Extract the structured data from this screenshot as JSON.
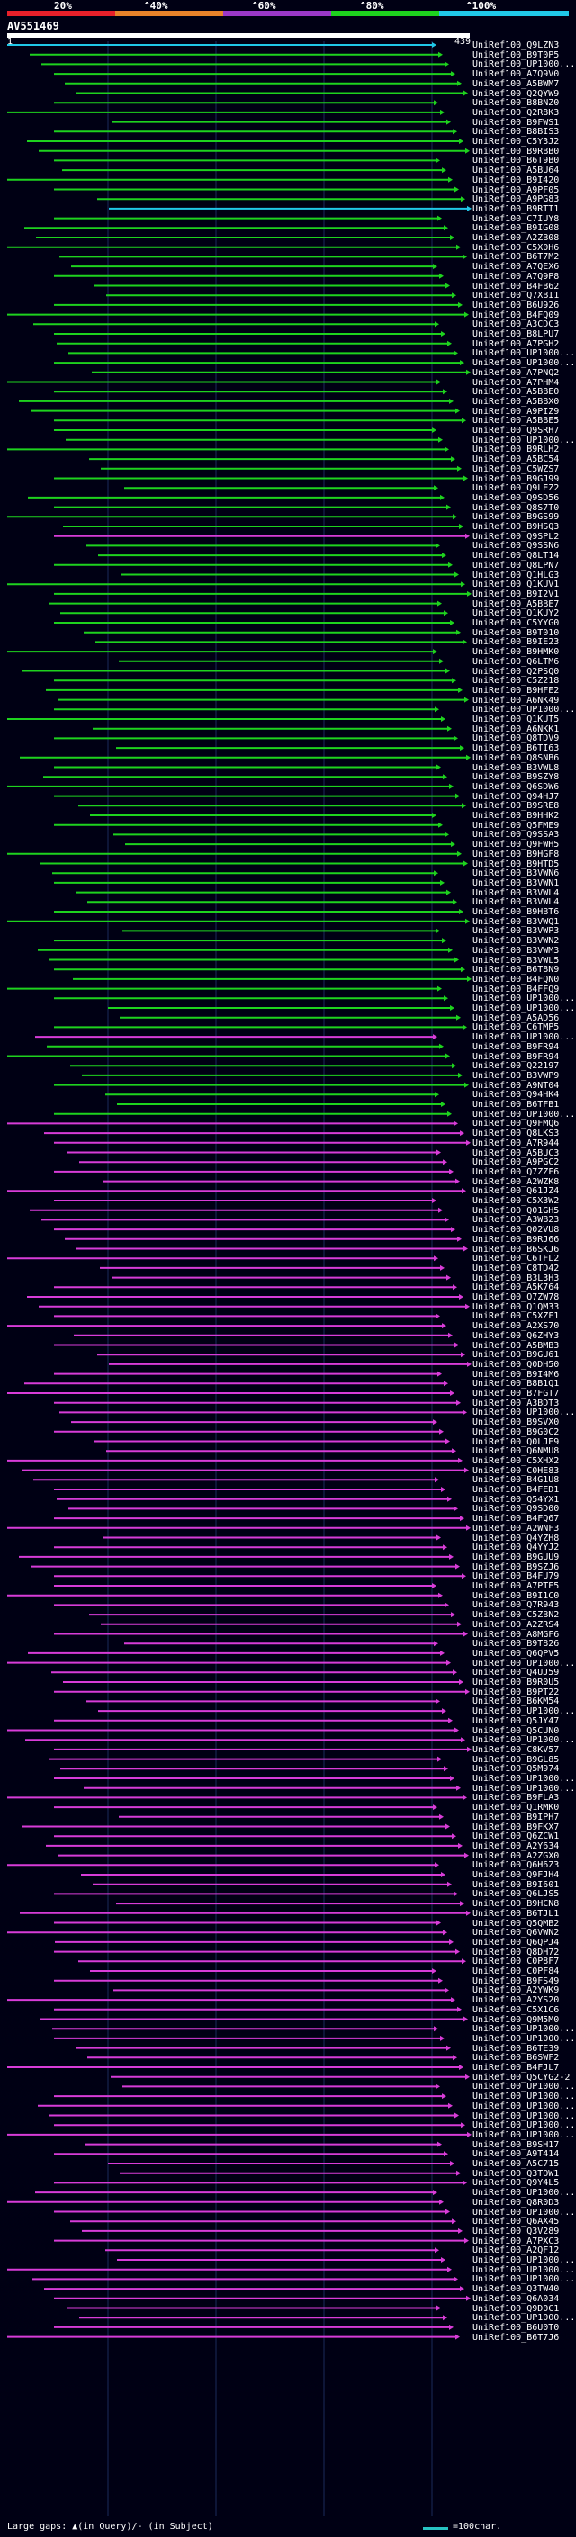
{
  "legend": {
    "labels": [
      "20%",
      "^40%",
      "^60%",
      "^80%",
      "^100%"
    ],
    "colors": [
      "#e8202a",
      "#e8832a",
      "#9b38c8",
      "#1ed21e",
      "#20c8e8"
    ]
  },
  "query": {
    "id": "AV551469",
    "start": "1",
    "end": "439"
  },
  "hits": [
    {
      "label": "UniRef100_Q9LZN3",
      "color": "#20c8e8"
    },
    {
      "label": "UniRef100_B9T0P5",
      "color": "#1ed21e"
    },
    {
      "label": "UniRef100_UP1000...",
      "color": "#1ed21e"
    },
    {
      "label": "UniRef100_A7Q9V0",
      "color": "#1ed21e"
    },
    {
      "label": "UniRef100_A5BWM7",
      "color": "#1ed21e"
    },
    {
      "label": "UniRef100_Q2QYW9",
      "color": "#1ed21e"
    },
    {
      "label": "UniRef100_B8BNZ0",
      "color": "#1ed21e"
    },
    {
      "label": "UniRef100_Q2R8K3",
      "color": "#1ed21e"
    },
    {
      "label": "UniRef100_B9FWS1",
      "color": "#1ed21e"
    },
    {
      "label": "UniRef100_B8BIS3",
      "color": "#1ed21e"
    },
    {
      "label": "UniRef100_C5Y3J2",
      "color": "#1ed21e"
    },
    {
      "label": "UniRef100_B9RBB0",
      "color": "#1ed21e"
    },
    {
      "label": "UniRef100_B6T9B0",
      "color": "#1ed21e"
    },
    {
      "label": "UniRef100_A5BU64",
      "color": "#1ed21e"
    },
    {
      "label": "UniRef100_B9I420",
      "color": "#1ed21e"
    },
    {
      "label": "UniRef100_A9PF05",
      "color": "#1ed21e"
    },
    {
      "label": "UniRef100_A9PG83",
      "color": "#1ed21e"
    },
    {
      "label": "UniRef100_B9RTT1",
      "color": "#20c8e8"
    },
    {
      "label": "UniRef100_C7IUY8",
      "color": "#1ed21e"
    },
    {
      "label": "UniRef100_B9IG08",
      "color": "#1ed21e"
    },
    {
      "label": "UniRef100_A2ZB08",
      "color": "#1ed21e"
    },
    {
      "label": "UniRef100_C5X0H6",
      "color": "#1ed21e"
    },
    {
      "label": "UniRef100_B6T7M2",
      "color": "#1ed21e"
    },
    {
      "label": "UniRef100_A7QEX6",
      "color": "#1ed21e"
    },
    {
      "label": "UniRef100_A7Q9P8",
      "color": "#1ed21e"
    },
    {
      "label": "UniRef100_B4FB62",
      "color": "#1ed21e"
    },
    {
      "label": "UniRef100_Q7XBI1",
      "color": "#1ed21e"
    },
    {
      "label": "UniRef100_B6U926",
      "color": "#1ed21e"
    },
    {
      "label": "UniRef100_B4FQ09",
      "color": "#1ed21e"
    },
    {
      "label": "UniRef100_A3CDC3",
      "color": "#1ed21e"
    },
    {
      "label": "UniRef100_B8LPU7",
      "color": "#1ed21e"
    },
    {
      "label": "UniRef100_A7PGH2",
      "color": "#1ed21e"
    },
    {
      "label": "UniRef100_UP1000...",
      "color": "#1ed21e"
    },
    {
      "label": "UniRef100_UP1000...",
      "color": "#1ed21e"
    },
    {
      "label": "UniRef100_A7PNQ2",
      "color": "#1ed21e"
    },
    {
      "label": "UniRef100_A7PHM4",
      "color": "#1ed21e"
    },
    {
      "label": "UniRef100_A5BBE0",
      "color": "#1ed21e"
    },
    {
      "label": "UniRef100_A5BBX0",
      "color": "#1ed21e"
    },
    {
      "label": "UniRef100_A9PIZ9",
      "color": "#1ed21e"
    },
    {
      "label": "UniRef100_A5BBE5",
      "color": "#1ed21e"
    },
    {
      "label": "UniRef100_Q9SRH7",
      "color": "#1ed21e"
    },
    {
      "label": "UniRef100_UP1000...",
      "color": "#1ed21e"
    },
    {
      "label": "UniRef100_B9RLH2",
      "color": "#1ed21e"
    },
    {
      "label": "UniRef100_A5BC54",
      "color": "#1ed21e"
    },
    {
      "label": "UniRef100_C5WZS7",
      "color": "#1ed21e"
    },
    {
      "label": "UniRef100_B9GJ99",
      "color": "#1ed21e"
    },
    {
      "label": "UniRef100_Q9LEZ2",
      "color": "#1ed21e"
    },
    {
      "label": "UniRef100_Q9SD56",
      "color": "#1ed21e"
    },
    {
      "label": "UniRef100_Q8S7T0",
      "color": "#1ed21e"
    },
    {
      "label": "UniRef100_B9GS99",
      "color": "#1ed21e"
    },
    {
      "label": "UniRef100_B9HSQ3",
      "color": "#1ed21e"
    },
    {
      "label": "UniRef100_Q9SPL2",
      "color": "#d83cd8"
    },
    {
      "label": "UniRef100_Q9SSN6",
      "color": "#1ed21e"
    },
    {
      "label": "UniRef100_Q8LT14",
      "color": "#1ed21e"
    },
    {
      "label": "UniRef100_Q8LPN7",
      "color": "#1ed21e"
    },
    {
      "label": "UniRef100_Q1HLG3",
      "color": "#1ed21e"
    },
    {
      "label": "UniRef100_Q1KUV1",
      "color": "#1ed21e"
    },
    {
      "label": "UniRef100_B9I2V1",
      "color": "#1ed21e"
    },
    {
      "label": "UniRef100_A5BBE7",
      "color": "#1ed21e"
    },
    {
      "label": "UniRef100_Q1KUY2",
      "color": "#1ed21e"
    },
    {
      "label": "UniRef100_C5YYG0",
      "color": "#1ed21e"
    },
    {
      "label": "UniRef100_B9T010",
      "color": "#1ed21e"
    },
    {
      "label": "UniRef100_B9IE23",
      "color": "#1ed21e"
    },
    {
      "label": "UniRef100_B9HMK0",
      "color": "#1ed21e"
    },
    {
      "label": "UniRef100_Q6LTM6",
      "color": "#1ed21e"
    },
    {
      "label": "UniRef100_Q2PSQ0",
      "color": "#1ed21e"
    },
    {
      "label": "UniRef100_C5Z218",
      "color": "#1ed21e"
    },
    {
      "label": "UniRef100_B9HFE2",
      "color": "#1ed21e"
    },
    {
      "label": "UniRef100_A6NK49",
      "color": "#1ed21e"
    },
    {
      "label": "UniRef100_UP1000...",
      "color": "#1ed21e"
    },
    {
      "label": "UniRef100_Q1KUT5",
      "color": "#1ed21e"
    },
    {
      "label": "UniRef100_A6NKK1",
      "color": "#1ed21e"
    },
    {
      "label": "UniRef100_Q8TDV9",
      "color": "#1ed21e"
    },
    {
      "label": "UniRef100_B6TI63",
      "color": "#1ed21e"
    },
    {
      "label": "UniRef100_Q8SNB6",
      "color": "#1ed21e"
    },
    {
      "label": "UniRef100_B3VWL8",
      "color": "#1ed21e"
    },
    {
      "label": "UniRef100_B9SZY8",
      "color": "#1ed21e"
    },
    {
      "label": "UniRef100_Q6SDW6",
      "color": "#1ed21e"
    },
    {
      "label": "UniRef100_Q94HJ7",
      "color": "#1ed21e"
    },
    {
      "label": "UniRef100_B9SRE8",
      "color": "#1ed21e"
    },
    {
      "label": "UniRef100_B9HHK2",
      "color": "#1ed21e"
    },
    {
      "label": "UniRef100_Q5FME9",
      "color": "#1ed21e"
    },
    {
      "label": "UniRef100_Q9SSA3",
      "color": "#1ed21e"
    },
    {
      "label": "UniRef100_Q9FWH5",
      "color": "#1ed21e"
    },
    {
      "label": "UniRef100_B9HGF8",
      "color": "#1ed21e"
    },
    {
      "label": "UniRef100_B9HTD5",
      "color": "#1ed21e"
    },
    {
      "label": "UniRef100_B3VWN6",
      "color": "#1ed21e"
    },
    {
      "label": "UniRef100_B3VWN1",
      "color": "#1ed21e"
    },
    {
      "label": "UniRef100_B3VWL4",
      "color": "#1ed21e"
    },
    {
      "label": "UniRef100_B3VWL4",
      "color": "#1ed21e"
    },
    {
      "label": "UniRef100_B9HBT6",
      "color": "#1ed21e"
    },
    {
      "label": "UniRef100_B3VWQ1",
      "color": "#1ed21e"
    },
    {
      "label": "UniRef100_B3VWP3",
      "color": "#1ed21e"
    },
    {
      "label": "UniRef100_B3VWN2",
      "color": "#1ed21e"
    },
    {
      "label": "UniRef100_B3VWM3",
      "color": "#1ed21e"
    },
    {
      "label": "UniRef100_B3VWL5",
      "color": "#1ed21e"
    },
    {
      "label": "UniRef100_B6T8N9",
      "color": "#1ed21e"
    },
    {
      "label": "UniRef100_B4FQN0",
      "color": "#1ed21e"
    },
    {
      "label": "UniRef100_B4FFQ9",
      "color": "#1ed21e"
    },
    {
      "label": "UniRef100_UP1000...",
      "color": "#1ed21e"
    },
    {
      "label": "UniRef100_UP1000...",
      "color": "#1ed21e"
    },
    {
      "label": "UniRef100_A5AD56",
      "color": "#1ed21e"
    },
    {
      "label": "UniRef100_C6TMP5",
      "color": "#1ed21e"
    },
    {
      "label": "UniRef100_UP1000...",
      "color": "#d83cd8"
    },
    {
      "label": "UniRef100_B9FR94",
      "color": "#1ed21e"
    },
    {
      "label": "UniRef100_B9FR94",
      "color": "#1ed21e"
    },
    {
      "label": "UniRef100_Q22197",
      "color": "#1ed21e"
    },
    {
      "label": "UniRef100_B3VWP9",
      "color": "#1ed21e"
    },
    {
      "label": "UniRef100_A9NT04",
      "color": "#1ed21e"
    },
    {
      "label": "UniRef100_Q94HK4",
      "color": "#1ed21e"
    },
    {
      "label": "UniRef100_B6TFB1",
      "color": "#1ed21e"
    },
    {
      "label": "UniRef100_UP1000...",
      "color": "#1ed21e"
    },
    {
      "label": "UniRef100_Q9FMQ6",
      "color": "#d83cd8"
    },
    {
      "label": "UniRef100_Q8LKS3",
      "color": "#d83cd8"
    },
    {
      "label": "UniRef100_A7R944",
      "color": "#d83cd8"
    },
    {
      "label": "UniRef100_A5BUC3",
      "color": "#d83cd8"
    },
    {
      "label": "UniRef100_A9PGC2",
      "color": "#d83cd8"
    },
    {
      "label": "UniRef100_Q7ZZF6",
      "color": "#d83cd8"
    },
    {
      "label": "UniRef100_A2WZK8",
      "color": "#d83cd8"
    },
    {
      "label": "UniRef100_Q61JZ4",
      "color": "#d83cd8"
    },
    {
      "label": "UniRef100_C5X3W2",
      "color": "#d83cd8"
    },
    {
      "label": "UniRef100_Q01GH5",
      "color": "#d83cd8"
    },
    {
      "label": "UniRef100_A3WB23",
      "color": "#d83cd8"
    },
    {
      "label": "UniRef100_Q02VU8",
      "color": "#d83cd8"
    },
    {
      "label": "UniRef100_B9RJ66",
      "color": "#d83cd8"
    },
    {
      "label": "UniRef100_B6SKJ6",
      "color": "#d83cd8"
    },
    {
      "label": "UniRef100_C6TFL2",
      "color": "#d83cd8"
    },
    {
      "label": "UniRef100_C8TD42",
      "color": "#d83cd8"
    },
    {
      "label": "UniRef100_B3L3H3",
      "color": "#d83cd8"
    },
    {
      "label": "UniRef100_A5K764",
      "color": "#d83cd8"
    },
    {
      "label": "UniRef100_Q7ZW78",
      "color": "#d83cd8"
    },
    {
      "label": "UniRef100_Q1QM33",
      "color": "#d83cd8"
    },
    {
      "label": "UniRef100_C5XZF1",
      "color": "#d83cd8"
    },
    {
      "label": "UniRef100_A2XS70",
      "color": "#d83cd8"
    },
    {
      "label": "UniRef100_Q6ZHY3",
      "color": "#d83cd8"
    },
    {
      "label": "UniRef100_A5BMB3",
      "color": "#d83cd8"
    },
    {
      "label": "UniRef100_B9GU61",
      "color": "#d83cd8"
    },
    {
      "label": "UniRef100_Q0DH50",
      "color": "#d83cd8"
    },
    {
      "label": "UniRef100_B9I4M6",
      "color": "#d83cd8"
    },
    {
      "label": "UniRef100_B8B1Q1",
      "color": "#d83cd8"
    },
    {
      "label": "UniRef100_B7FGT7",
      "color": "#d83cd8"
    },
    {
      "label": "UniRef100_A3BDT3",
      "color": "#d83cd8"
    },
    {
      "label": "UniRef100_UP1000...",
      "color": "#d83cd8"
    },
    {
      "label": "UniRef100_B9SVX0",
      "color": "#d83cd8"
    },
    {
      "label": "UniRef100_B9G0C2",
      "color": "#d83cd8"
    },
    {
      "label": "UniRef100_Q0LJE9",
      "color": "#d83cd8"
    },
    {
      "label": "UniRef100_Q6NMU8",
      "color": "#d83cd8"
    },
    {
      "label": "UniRef100_C5XHX2",
      "color": "#d83cd8"
    },
    {
      "label": "UniRef100_C0HE83",
      "color": "#d83cd8"
    },
    {
      "label": "UniRef100_B4G1U8",
      "color": "#d83cd8"
    },
    {
      "label": "UniRef100_B4FED1",
      "color": "#d83cd8"
    },
    {
      "label": "UniRef100_Q54YX1",
      "color": "#d83cd8"
    },
    {
      "label": "UniRef100_Q9SD00",
      "color": "#d83cd8"
    },
    {
      "label": "UniRef100_B4FQ67",
      "color": "#d83cd8"
    },
    {
      "label": "UniRef100_A2WNF3",
      "color": "#d83cd8"
    },
    {
      "label": "UniRef100_Q4YZH8",
      "color": "#d83cd8"
    },
    {
      "label": "UniRef100_Q4YYJ2",
      "color": "#d83cd8"
    },
    {
      "label": "UniRef100_B9GUU9",
      "color": "#d83cd8"
    },
    {
      "label": "UniRef100_B9SZJ6",
      "color": "#d83cd8"
    },
    {
      "label": "UniRef100_B4FU79",
      "color": "#d83cd8"
    },
    {
      "label": "UniRef100_A7PTE5",
      "color": "#d83cd8"
    },
    {
      "label": "UniRef100_B9I1C0",
      "color": "#d83cd8"
    },
    {
      "label": "UniRef100_Q7R943",
      "color": "#d83cd8"
    },
    {
      "label": "UniRef100_C5ZBN2",
      "color": "#d83cd8"
    },
    {
      "label": "UniRef100_A2ZRS4",
      "color": "#d83cd8"
    },
    {
      "label": "UniRef100_A8MGF6",
      "color": "#d83cd8"
    },
    {
      "label": "UniRef100_B9T826",
      "color": "#d83cd8"
    },
    {
      "label": "UniRef100_Q6QPV5",
      "color": "#d83cd8"
    },
    {
      "label": "UniRef100_UP1000...",
      "color": "#d83cd8"
    },
    {
      "label": "UniRef100_Q4UJ59",
      "color": "#d83cd8"
    },
    {
      "label": "UniRef100_B9R0U5",
      "color": "#d83cd8"
    },
    {
      "label": "UniRef100_B9PT22",
      "color": "#d83cd8"
    },
    {
      "label": "UniRef100_B6KM54",
      "color": "#d83cd8"
    },
    {
      "label": "UniRef100_UP1000...",
      "color": "#d83cd8"
    },
    {
      "label": "UniRef100_Q5JY47",
      "color": "#d83cd8"
    },
    {
      "label": "UniRef100_Q5CUN0",
      "color": "#d83cd8"
    },
    {
      "label": "UniRef100_UP1000...",
      "color": "#d83cd8"
    },
    {
      "label": "UniRef100_C8KV57",
      "color": "#d83cd8"
    },
    {
      "label": "UniRef100_B9GL85",
      "color": "#d83cd8"
    },
    {
      "label": "UniRef100_Q5M974",
      "color": "#d83cd8"
    },
    {
      "label": "UniRef100_UP1000...",
      "color": "#d83cd8"
    },
    {
      "label": "UniRef100_UP1000...",
      "color": "#d83cd8"
    },
    {
      "label": "UniRef100_B9FLA3",
      "color": "#d83cd8"
    },
    {
      "label": "UniRef100_Q1RMK0",
      "color": "#d83cd8"
    },
    {
      "label": "UniRef100_B9IPH7",
      "color": "#d83cd8"
    },
    {
      "label": "UniRef100_B9FKX7",
      "color": "#d83cd8"
    },
    {
      "label": "UniRef100_Q6ZCW1",
      "color": "#d83cd8"
    },
    {
      "label": "UniRef100_A2Y634",
      "color": "#d83cd8"
    },
    {
      "label": "UniRef100_A2ZGX0",
      "color": "#d83cd8"
    },
    {
      "label": "UniRef100_Q6H6Z3",
      "color": "#d83cd8"
    },
    {
      "label": "UniRef100_Q9FJH4",
      "color": "#d83cd8"
    },
    {
      "label": "UniRef100_B9I601",
      "color": "#d83cd8"
    },
    {
      "label": "UniRef100_Q6LJS5",
      "color": "#d83cd8"
    },
    {
      "label": "UniRef100_B9HCN8",
      "color": "#d83cd8"
    },
    {
      "label": "UniRef100_B6TJL1",
      "color": "#d83cd8"
    },
    {
      "label": "UniRef100_Q5QMB2",
      "color": "#d83cd8"
    },
    {
      "label": "UniRef100_Q6VWN2",
      "color": "#d83cd8"
    },
    {
      "label": "UniRef100_Q6QPJ4",
      "color": "#d83cd8"
    },
    {
      "label": "UniRef100_Q8DH72",
      "color": "#d83cd8"
    },
    {
      "label": "UniRef100_C0P8F7",
      "color": "#d83cd8"
    },
    {
      "label": "UniRef100_C0PF84",
      "color": "#d83cd8"
    },
    {
      "label": "UniRef100_B9FS49",
      "color": "#d83cd8"
    },
    {
      "label": "UniRef100_A2YWK9",
      "color": "#d83cd8"
    },
    {
      "label": "UniRef100_A2YS20",
      "color": "#d83cd8"
    },
    {
      "label": "UniRef100_C5X1C6",
      "color": "#d83cd8"
    },
    {
      "label": "UniRef100_Q9M5M0",
      "color": "#d83cd8"
    },
    {
      "label": "UniRef100_UP1000...",
      "color": "#d83cd8"
    },
    {
      "label": "UniRef100_UP1000...",
      "color": "#d83cd8"
    },
    {
      "label": "UniRef100_B6TE39",
      "color": "#d83cd8"
    },
    {
      "label": "UniRef100_B6SWF2",
      "color": "#d83cd8"
    },
    {
      "label": "UniRef100_B4FJL7",
      "color": "#d83cd8"
    },
    {
      "label": "UniRef100_Q5CYG2-2",
      "color": "#d83cd8"
    },
    {
      "label": "UniRef100_UP1000...",
      "color": "#d83cd8"
    },
    {
      "label": "UniRef100_UP1000...",
      "color": "#d83cd8"
    },
    {
      "label": "UniRef100_UP1000...",
      "color": "#d83cd8"
    },
    {
      "label": "UniRef100_UP1000...",
      "color": "#d83cd8"
    },
    {
      "label": "UniRef100_UP1000...",
      "color": "#d83cd8"
    },
    {
      "label": "UniRef100_UP1000...",
      "color": "#d83cd8"
    },
    {
      "label": "UniRef100_B9SH17",
      "color": "#d83cd8"
    },
    {
      "label": "UniRef100_A9T414",
      "color": "#d83cd8"
    },
    {
      "label": "UniRef100_A5C715",
      "color": "#d83cd8"
    },
    {
      "label": "UniRef100_Q3TOW1",
      "color": "#d83cd8"
    },
    {
      "label": "UniRef100_Q9Y4L5",
      "color": "#d83cd8"
    },
    {
      "label": "UniRef100_UP1000...",
      "color": "#d83cd8"
    },
    {
      "label": "UniRef100_Q8R0D3",
      "color": "#d83cd8"
    },
    {
      "label": "UniRef100_UP1000...",
      "color": "#d83cd8"
    },
    {
      "label": "UniRef100_Q6AX45",
      "color": "#d83cd8"
    },
    {
      "label": "UniRef100_Q3V289",
      "color": "#d83cd8"
    },
    {
      "label": "UniRef100_A7PXC3",
      "color": "#d83cd8"
    },
    {
      "label": "UniRef100_A2QF12",
      "color": "#d83cd8"
    },
    {
      "label": "UniRef100_UP1000...",
      "color": "#d83cd8"
    },
    {
      "label": "UniRef100_UP1000...",
      "color": "#d83cd8"
    },
    {
      "label": "UniRef100_UP1000...",
      "color": "#d83cd8"
    },
    {
      "label": "UniRef100_Q3TW40",
      "color": "#d83cd8"
    },
    {
      "label": "UniRef100_Q6A034",
      "color": "#d83cd8"
    },
    {
      "label": "UniRef100_Q9D0C1",
      "color": "#d83cd8"
    },
    {
      "label": "UniRef100_UP1000...",
      "color": "#d83cd8"
    },
    {
      "label": "UniRef100_B6U0T0",
      "color": "#d83cd8"
    },
    {
      "label": "UniRef100_B6T7J6",
      "color": "#d83cd8"
    }
  ],
  "footer": {
    "text": "Large gaps: ▲(in Query)/- (in Subject)",
    "scale": "=100char."
  }
}
